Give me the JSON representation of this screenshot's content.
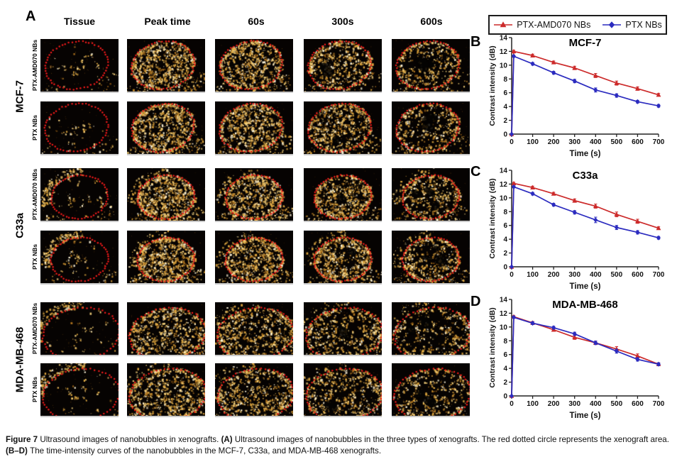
{
  "panels": {
    "a_label": "A",
    "b_label": "B",
    "c_label": "C",
    "d_label": "D"
  },
  "panel_a": {
    "column_headers": [
      "Tissue",
      "Peak time",
      "60s",
      "300s",
      "600s"
    ],
    "row_groups": [
      {
        "label": "MCF-7",
        "rows": [
          "PTX-AMD070 NBs",
          "PTX NBs"
        ]
      },
      {
        "label": "C33a",
        "rows": [
          "PTX-AMD070 NBs",
          "PTX NBs"
        ]
      },
      {
        "label": "MDA-MB-468",
        "rows": [
          "PTX-AMD070 NBs",
          "PTX NBs"
        ]
      }
    ],
    "image_colors": {
      "background": "#060302",
      "outline": "#ee1a1a",
      "speckle": [
        "#fff6da",
        "#f6d27c",
        "#e0a83f",
        "#b3761f",
        "#7a4c12"
      ]
    }
  },
  "legend": {
    "series": [
      {
        "label": "PTX-AMD070 NBs",
        "color": "#cc2a2a",
        "marker": "triangle"
      },
      {
        "label": "PTX NBs",
        "color": "#2b2bbf",
        "marker": "diamond"
      }
    ]
  },
  "chart_data": [
    {
      "type": "line",
      "panel": "B",
      "title": "MCF-7",
      "xlabel": "Time (s)",
      "ylabel": "Contrast intensity (dB)",
      "xlim": [
        0,
        700
      ],
      "ylim": [
        0,
        14
      ],
      "xticks": [
        0,
        100,
        200,
        300,
        400,
        500,
        600,
        700
      ],
      "yticks": [
        0,
        2,
        4,
        6,
        8,
        10,
        12,
        14
      ],
      "grid": false,
      "legend_position": "top",
      "series": [
        {
          "name": "PTX-AMD070 NBs",
          "color": "#cc2a2a",
          "marker": "triangle",
          "x": [
            0,
            10,
            100,
            200,
            300,
            400,
            500,
            600,
            700
          ],
          "y": [
            0,
            12.0,
            11.4,
            10.4,
            9.6,
            8.5,
            7.4,
            6.6,
            5.7
          ],
          "yerr": [
            0,
            0.15,
            0.2,
            0.2,
            0.25,
            0.3,
            0.3,
            0.25,
            0.2
          ]
        },
        {
          "name": "PTX NBs",
          "color": "#2b2bbf",
          "marker": "diamond",
          "x": [
            0,
            10,
            100,
            200,
            300,
            400,
            500,
            600,
            700
          ],
          "y": [
            0,
            11.3,
            10.2,
            8.9,
            7.7,
            6.4,
            5.6,
            4.7,
            4.1
          ],
          "yerr": [
            0,
            0.15,
            0.2,
            0.2,
            0.25,
            0.3,
            0.25,
            0.2,
            0.2
          ]
        }
      ]
    },
    {
      "type": "line",
      "panel": "C",
      "title": "C33a",
      "xlabel": "Time (s)",
      "ylabel": "Contrast intensity (dB)",
      "xlim": [
        0,
        700
      ],
      "ylim": [
        0,
        14
      ],
      "xticks": [
        0,
        100,
        200,
        300,
        400,
        500,
        600,
        700
      ],
      "yticks": [
        0,
        2,
        4,
        6,
        8,
        10,
        12,
        14
      ],
      "grid": false,
      "legend_position": "top",
      "series": [
        {
          "name": "PTX-AMD070 NBs",
          "color": "#cc2a2a",
          "marker": "triangle",
          "x": [
            0,
            10,
            100,
            200,
            300,
            400,
            500,
            600,
            700
          ],
          "y": [
            0,
            12.1,
            11.5,
            10.6,
            9.6,
            8.8,
            7.6,
            6.6,
            5.6
          ],
          "yerr": [
            0,
            0.15,
            0.2,
            0.2,
            0.25,
            0.3,
            0.35,
            0.3,
            0.2
          ]
        },
        {
          "name": "PTX NBs",
          "color": "#2b2bbf",
          "marker": "diamond",
          "x": [
            0,
            10,
            100,
            200,
            300,
            400,
            500,
            600,
            700
          ],
          "y": [
            0,
            11.6,
            10.6,
            9.0,
            7.9,
            6.8,
            5.7,
            5.0,
            4.2
          ],
          "yerr": [
            0,
            0.15,
            0.2,
            0.2,
            0.25,
            0.4,
            0.3,
            0.25,
            0.2
          ]
        }
      ]
    },
    {
      "type": "line",
      "panel": "D",
      "title": "MDA-MB-468",
      "xlabel": "Time (s)",
      "ylabel": "Contrast intensity (dB)",
      "xlim": [
        0,
        700
      ],
      "ylim": [
        0,
        14
      ],
      "xticks": [
        0,
        100,
        200,
        300,
        400,
        500,
        600,
        700
      ],
      "yticks": [
        0,
        2,
        4,
        6,
        8,
        10,
        12,
        14
      ],
      "grid": false,
      "legend_position": "top",
      "series": [
        {
          "name": "PTX-AMD070 NBs",
          "color": "#cc2a2a",
          "marker": "triangle",
          "x": [
            0,
            10,
            100,
            200,
            300,
            400,
            500,
            600,
            700
          ],
          "y": [
            0,
            11.5,
            10.6,
            9.6,
            8.5,
            7.7,
            6.8,
            5.8,
            4.6
          ],
          "yerr": [
            0,
            0.15,
            0.2,
            0.2,
            0.3,
            0.25,
            0.35,
            0.3,
            0.2
          ]
        },
        {
          "name": "PTX NBs",
          "color": "#2b2bbf",
          "marker": "diamond",
          "x": [
            0,
            10,
            100,
            200,
            300,
            400,
            500,
            600,
            700
          ],
          "y": [
            0,
            11.4,
            10.55,
            9.9,
            9.0,
            7.7,
            6.5,
            5.3,
            4.6
          ],
          "yerr": [
            0,
            0.15,
            0.2,
            0.2,
            0.25,
            0.25,
            0.3,
            0.25,
            0.2
          ]
        }
      ]
    }
  ],
  "caption": {
    "parts": [
      {
        "text": "Figure 7 ",
        "bold": true
      },
      {
        "text": "Ultrasound images of nanobubbles in xenografts. ",
        "bold": false
      },
      {
        "text": "(A) ",
        "bold": true
      },
      {
        "text": "Ultrasound images of nanobubbles in the three types of xenografts. The red dotted circle represents the xenograft area. ",
        "bold": false
      },
      {
        "text": "(B–D) ",
        "bold": true
      },
      {
        "text": "The time-intensity curves of the nanobubbles in the MCF-7, C33a, and MDA-MB-468 xenografts.",
        "bold": false
      }
    ]
  }
}
